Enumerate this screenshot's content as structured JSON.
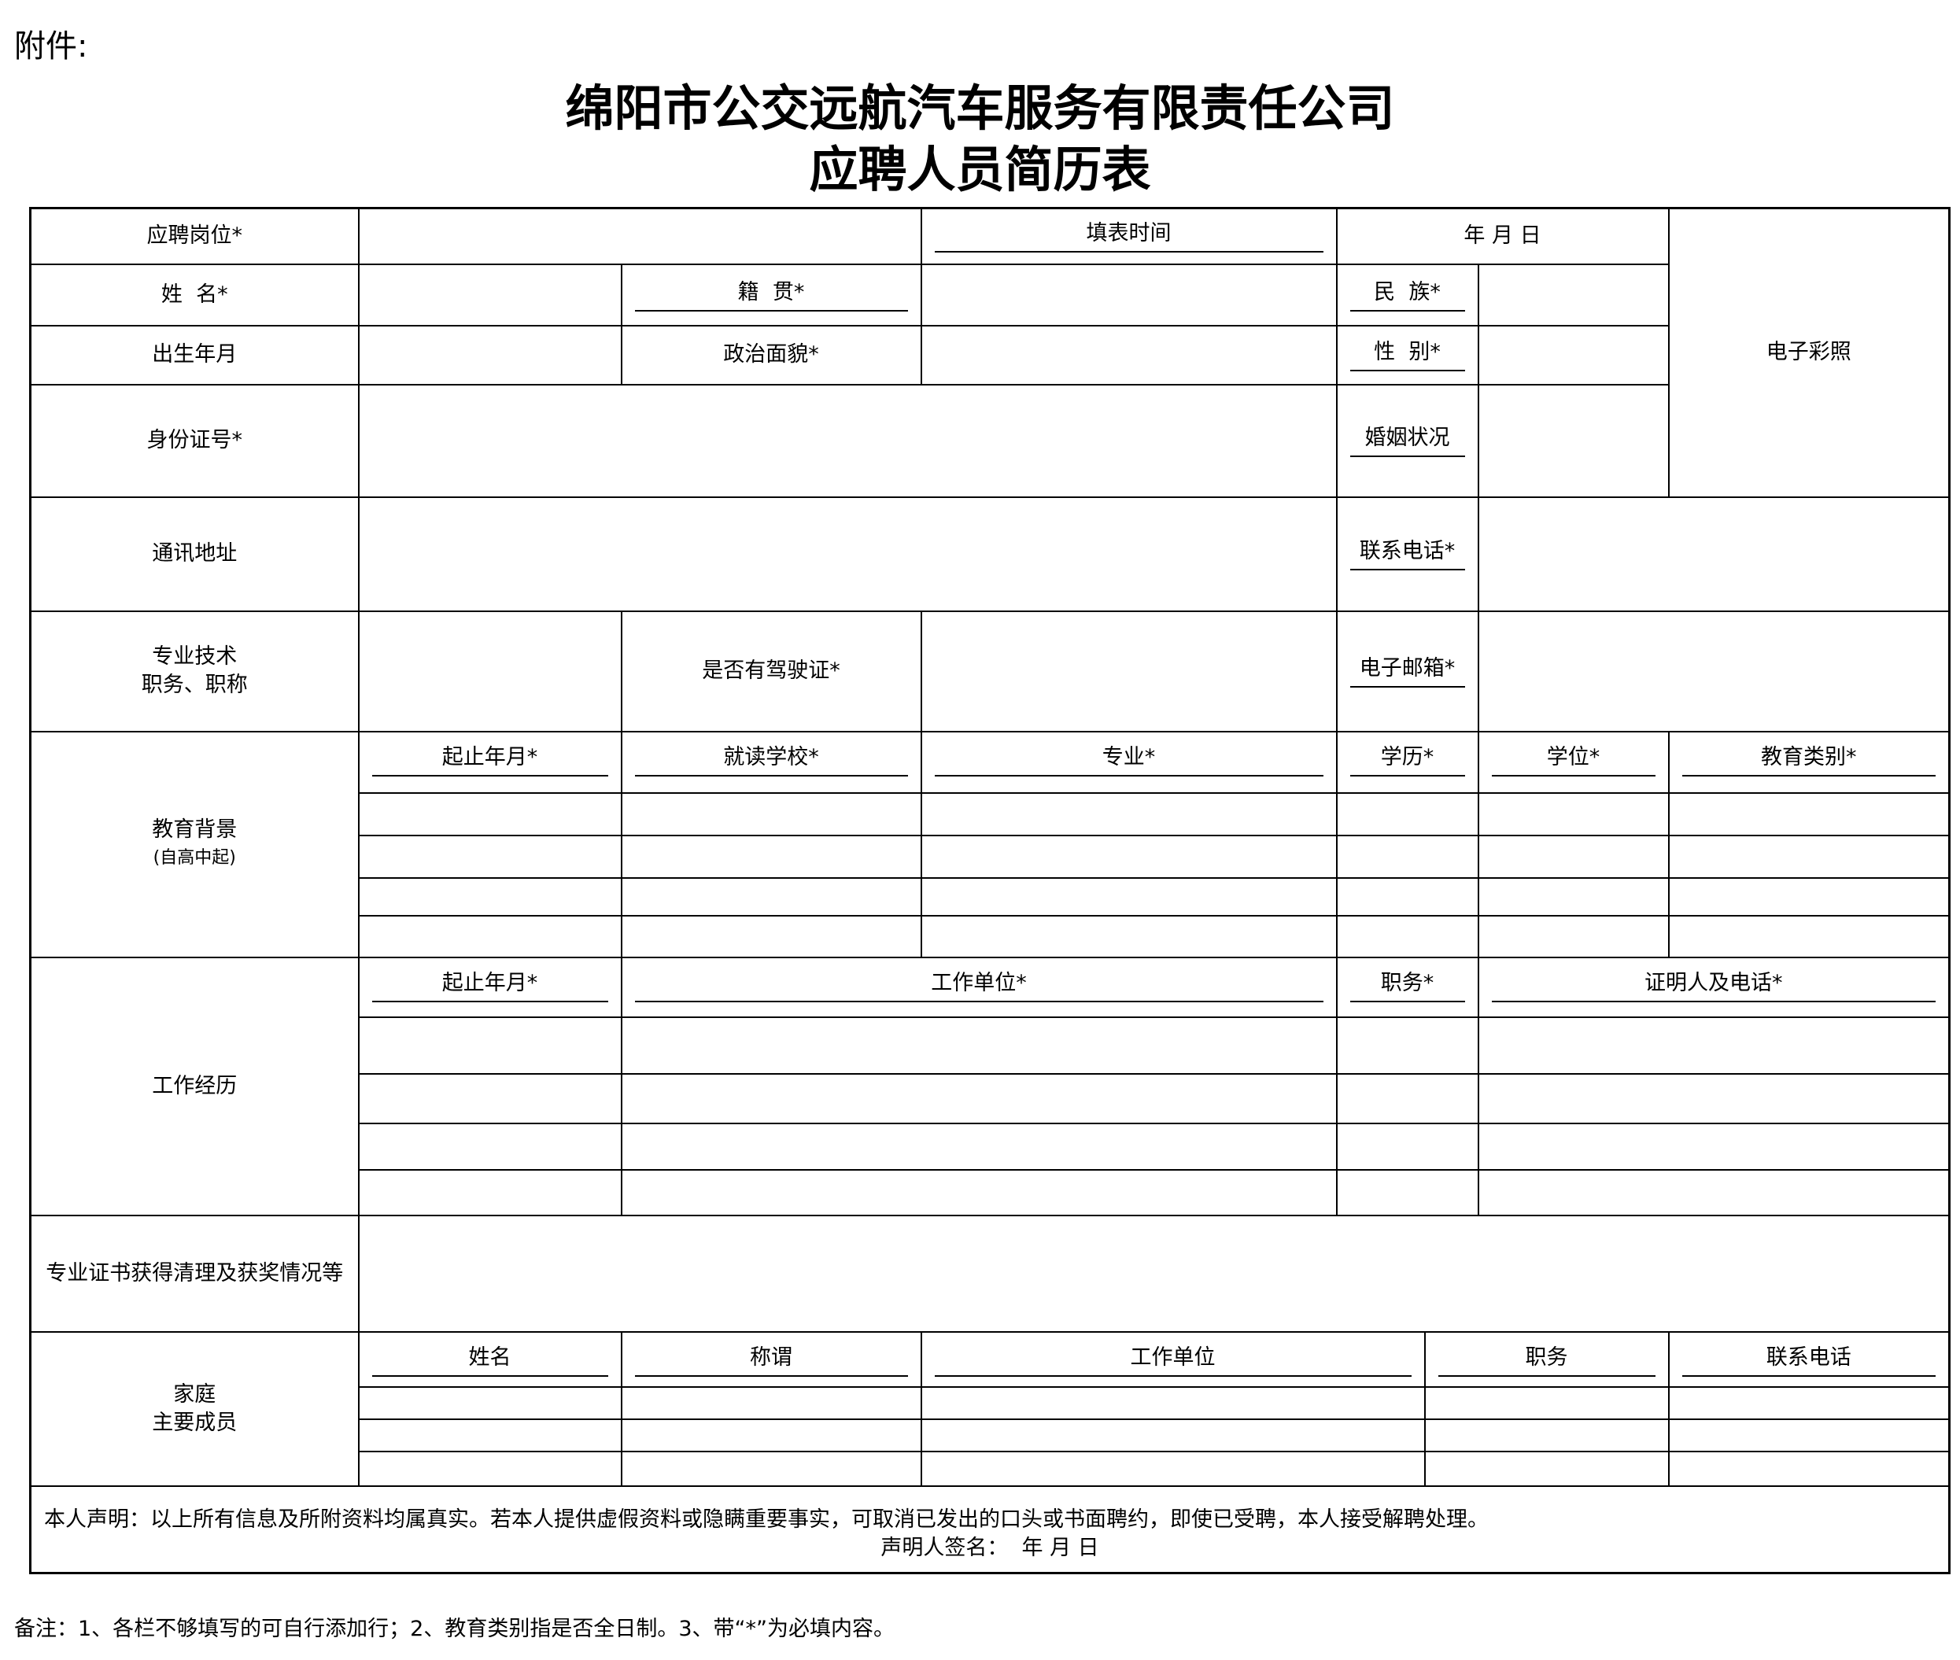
{
  "attachment_label": "附件:",
  "title_line1": "绵阳市公交远航汽车服务有限责任公司",
  "title_line2": "应聘人员简历表",
  "form": {
    "position": "应聘岗位*",
    "fill_time": "填表时间",
    "date": "年 月 日",
    "photo": "电子彩照",
    "name": "姓  名*",
    "native_place": "籍  贯*",
    "ethnicity": "民  族*",
    "birth": "出生年月",
    "political": "政治面貌*",
    "gender": "性  别*",
    "id_number": "身份证号*",
    "marital": "婚姻状况",
    "address": "通讯地址",
    "phone": "联系电话*",
    "title_line_a": "专业技术",
    "title_line_b": "职务、职称",
    "license": "是否有驾驶证*",
    "email": "电子邮箱*"
  },
  "education": {
    "label": "教育背景",
    "sub": "(自高中起)",
    "headers": [
      "起止年月*",
      "就读学校*",
      "专业*",
      "学历*",
      "学位*",
      "教育类别*"
    ]
  },
  "work": {
    "label": "工作经历",
    "headers": [
      "起止年月*",
      "工作单位*",
      "职务*",
      "证明人及电话*"
    ]
  },
  "certificates": {
    "label": "专业证书获得清理及获奖情况等"
  },
  "family": {
    "label_a": "家庭",
    "label_b": "主要成员",
    "headers": [
      "姓名",
      "称谓",
      "工作单位",
      "职务",
      "联系电话"
    ]
  },
  "declaration": {
    "text": "本人声明：以上所有信息及所附资料均属真实。若本人提供虚假资料或隐瞒重要事实，可取消已发出的口头或书面聘约，即使已受聘，本人接受解聘处理。",
    "sign": "声明人签名：  年 月 日"
  },
  "note": "备注：1、各栏不够填写的可自行添加行；2、教育类别指是否全日制。3、带“*”为必填内容。"
}
